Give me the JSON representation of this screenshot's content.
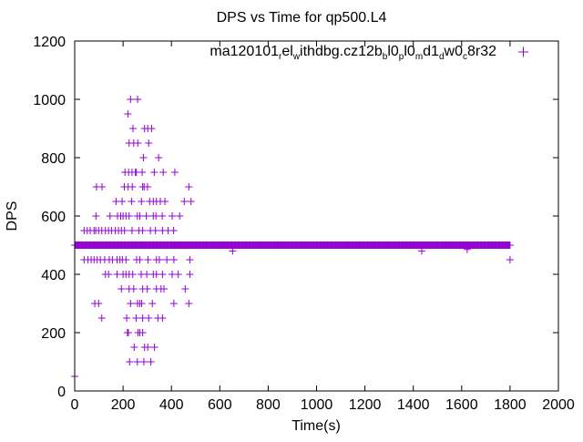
{
  "chart_data": {
    "type": "scatter",
    "title": "DPS vs Time for qp500.L4",
    "xlabel": "Time(s)",
    "ylabel": "DPS",
    "xlim": [
      0,
      2000
    ],
    "ylim": [
      0,
      1200
    ],
    "xticks": [
      "0",
      "200",
      "400",
      "600",
      "800",
      "1000",
      "1200",
      "1400",
      "1600",
      "1800",
      "2000"
    ],
    "yticks": [
      "0",
      "200",
      "400",
      "600",
      "800",
      "1000",
      "1200"
    ],
    "grid": false,
    "legend_position": "top-right",
    "series": [
      {
        "name_parts": [
          "ma120101",
          "r",
          "el",
          "w",
          "ithdbg.cz12b",
          "b",
          "l0",
          "p",
          "l0",
          "m",
          "d1",
          "d",
          "w0",
          "c",
          "8r32"
        ],
        "color": "#9400d3",
        "marker": "plus",
        "dense_runs": [
          {
            "dps": 500,
            "t_start": 0,
            "t_end": 1800,
            "step": 3
          }
        ],
        "points": [
          [
            231,
            1000
          ],
          [
            260,
            1000
          ],
          [
            220,
            950
          ],
          [
            241,
            900
          ],
          [
            289,
            900
          ],
          [
            302,
            900
          ],
          [
            318,
            900
          ],
          [
            225,
            850
          ],
          [
            244,
            850
          ],
          [
            261,
            850
          ],
          [
            306,
            850
          ],
          [
            284,
            800
          ],
          [
            347,
            800
          ],
          [
            208,
            750
          ],
          [
            223,
            750
          ],
          [
            237,
            750
          ],
          [
            251,
            750
          ],
          [
            255,
            750
          ],
          [
            279,
            750
          ],
          [
            329,
            750
          ],
          [
            366,
            750
          ],
          [
            414,
            750
          ],
          [
            90,
            700
          ],
          [
            113,
            700
          ],
          [
            205,
            700
          ],
          [
            221,
            700
          ],
          [
            238,
            700
          ],
          [
            281,
            700
          ],
          [
            287,
            700
          ],
          [
            301,
            700
          ],
          [
            472,
            700
          ],
          [
            171,
            650
          ],
          [
            196,
            650
          ],
          [
            235,
            650
          ],
          [
            276,
            650
          ],
          [
            310,
            650
          ],
          [
            325,
            650
          ],
          [
            338,
            650
          ],
          [
            354,
            650
          ],
          [
            373,
            650
          ],
          [
            453,
            650
          ],
          [
            481,
            650
          ],
          [
            88,
            600
          ],
          [
            146,
            600
          ],
          [
            177,
            600
          ],
          [
            190,
            600
          ],
          [
            200,
            600
          ],
          [
            212,
            600
          ],
          [
            225,
            600
          ],
          [
            259,
            600
          ],
          [
            269,
            600
          ],
          [
            296,
            600
          ],
          [
            325,
            600
          ],
          [
            336,
            600
          ],
          [
            362,
            600
          ],
          [
            403,
            600
          ],
          [
            434,
            600
          ],
          [
            39,
            550
          ],
          [
            52,
            550
          ],
          [
            64,
            550
          ],
          [
            80,
            550
          ],
          [
            87,
            550
          ],
          [
            99,
            550
          ],
          [
            112,
            550
          ],
          [
            127,
            550
          ],
          [
            140,
            550
          ],
          [
            152,
            550
          ],
          [
            168,
            550
          ],
          [
            181,
            550
          ],
          [
            193,
            550
          ],
          [
            206,
            550
          ],
          [
            237,
            550
          ],
          [
            265,
            550
          ],
          [
            281,
            550
          ],
          [
            313,
            550
          ],
          [
            334,
            550
          ],
          [
            363,
            550
          ],
          [
            386,
            550
          ],
          [
            409,
            550
          ],
          [
            653,
            480
          ],
          [
            1435,
            480
          ],
          [
            1623,
            485
          ],
          [
            39,
            450
          ],
          [
            55,
            450
          ],
          [
            68,
            450
          ],
          [
            80,
            450
          ],
          [
            93,
            450
          ],
          [
            106,
            450
          ],
          [
            124,
            450
          ],
          [
            143,
            450
          ],
          [
            156,
            450
          ],
          [
            175,
            450
          ],
          [
            187,
            450
          ],
          [
            197,
            450
          ],
          [
            212,
            450
          ],
          [
            256,
            450
          ],
          [
            269,
            450
          ],
          [
            303,
            450
          ],
          [
            338,
            450
          ],
          [
            350,
            450
          ],
          [
            381,
            450
          ],
          [
            410,
            450
          ],
          [
            476,
            450
          ],
          [
            1800,
            450
          ],
          [
            127,
            400
          ],
          [
            140,
            400
          ],
          [
            175,
            400
          ],
          [
            200,
            400
          ],
          [
            212,
            400
          ],
          [
            225,
            400
          ],
          [
            240,
            400
          ],
          [
            275,
            400
          ],
          [
            298,
            400
          ],
          [
            325,
            400
          ],
          [
            338,
            400
          ],
          [
            363,
            400
          ],
          [
            403,
            400
          ],
          [
            428,
            400
          ],
          [
            476,
            400
          ],
          [
            193,
            350
          ],
          [
            225,
            350
          ],
          [
            244,
            350
          ],
          [
            281,
            350
          ],
          [
            300,
            350
          ],
          [
            338,
            350
          ],
          [
            357,
            350
          ],
          [
            369,
            350
          ],
          [
            457,
            350
          ],
          [
            83,
            300
          ],
          [
            99,
            300
          ],
          [
            231,
            300
          ],
          [
            260,
            300
          ],
          [
            269,
            300
          ],
          [
            277,
            300
          ],
          [
            321,
            300
          ],
          [
            410,
            300
          ],
          [
            472,
            300
          ],
          [
            112,
            250
          ],
          [
            215,
            250
          ],
          [
            254,
            250
          ],
          [
            281,
            250
          ],
          [
            306,
            250
          ],
          [
            344,
            250
          ],
          [
            363,
            250
          ],
          [
            218,
            200
          ],
          [
            222,
            200
          ],
          [
            262,
            200
          ],
          [
            269,
            200
          ],
          [
            281,
            200
          ],
          [
            246,
            150
          ],
          [
            289,
            150
          ],
          [
            302,
            150
          ],
          [
            330,
            150
          ],
          [
            227,
            100
          ],
          [
            259,
            100
          ],
          [
            286,
            100
          ],
          [
            315,
            100
          ],
          [
            0,
            50
          ]
        ]
      }
    ]
  }
}
